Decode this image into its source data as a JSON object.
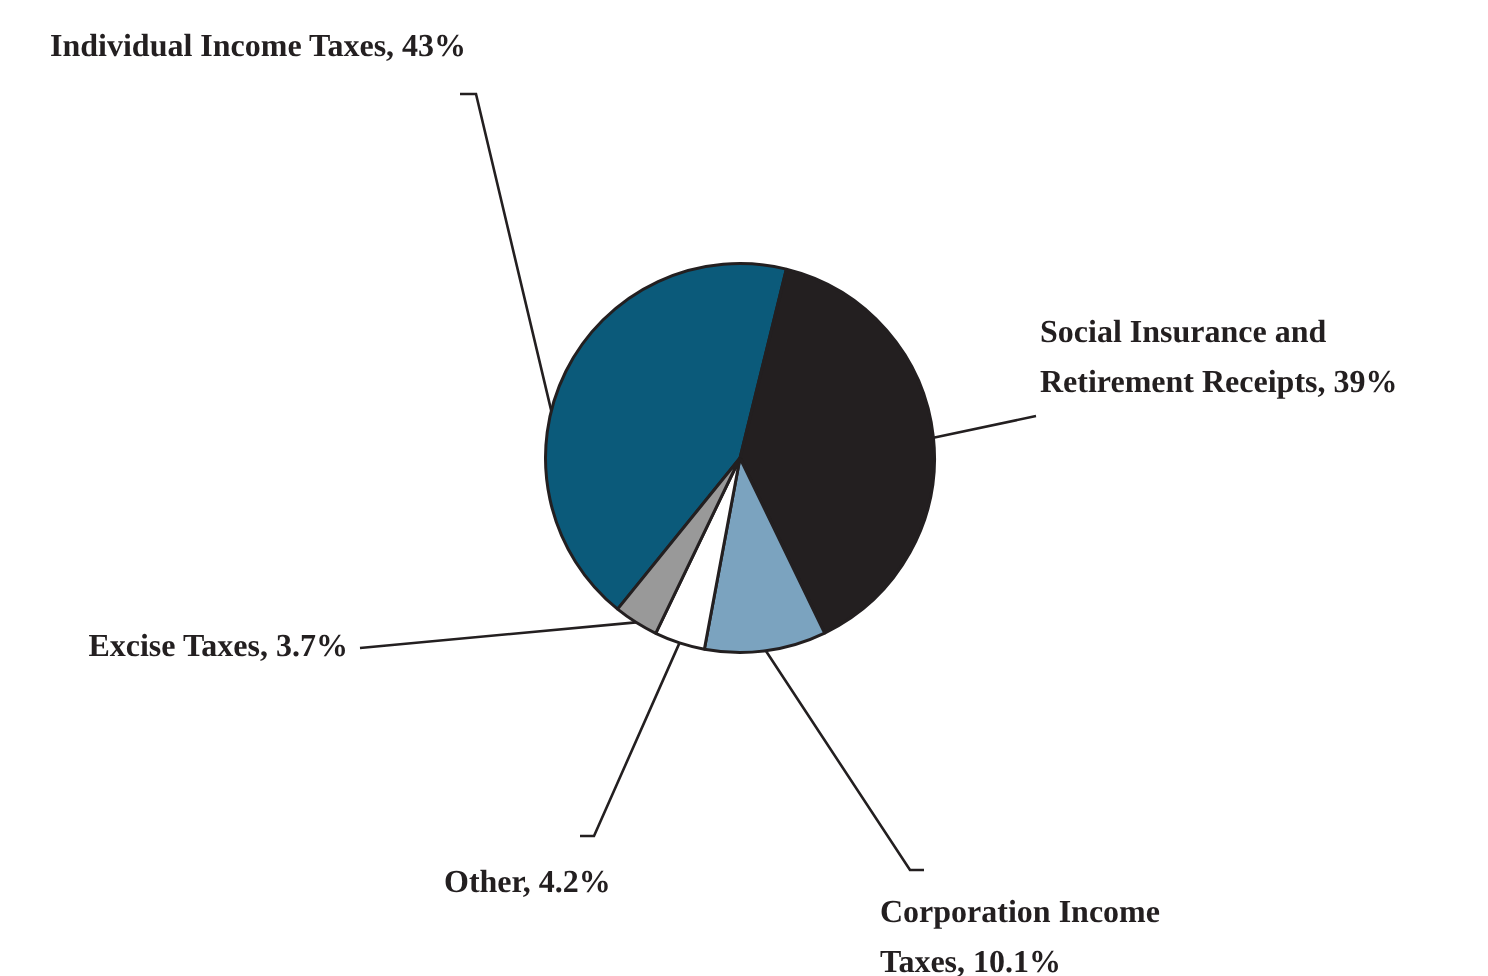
{
  "chart_data": {
    "type": "pie",
    "categories": [
      "Individual Income Taxes",
      "Social Insurance and Retirement Receipts",
      "Corporation Income Taxes",
      "Other",
      "Excise Taxes"
    ],
    "values": [
      43,
      39,
      10.1,
      4.2,
      3.7
    ],
    "value_labels": [
      "43%",
      "39%",
      "10.1%",
      "4.2%",
      "3.7%"
    ],
    "colors": [
      "#0b5a7a",
      "#231f20",
      "#7ba3bf",
      "#ffffff",
      "#999999"
    ],
    "legend": false
  }
}
